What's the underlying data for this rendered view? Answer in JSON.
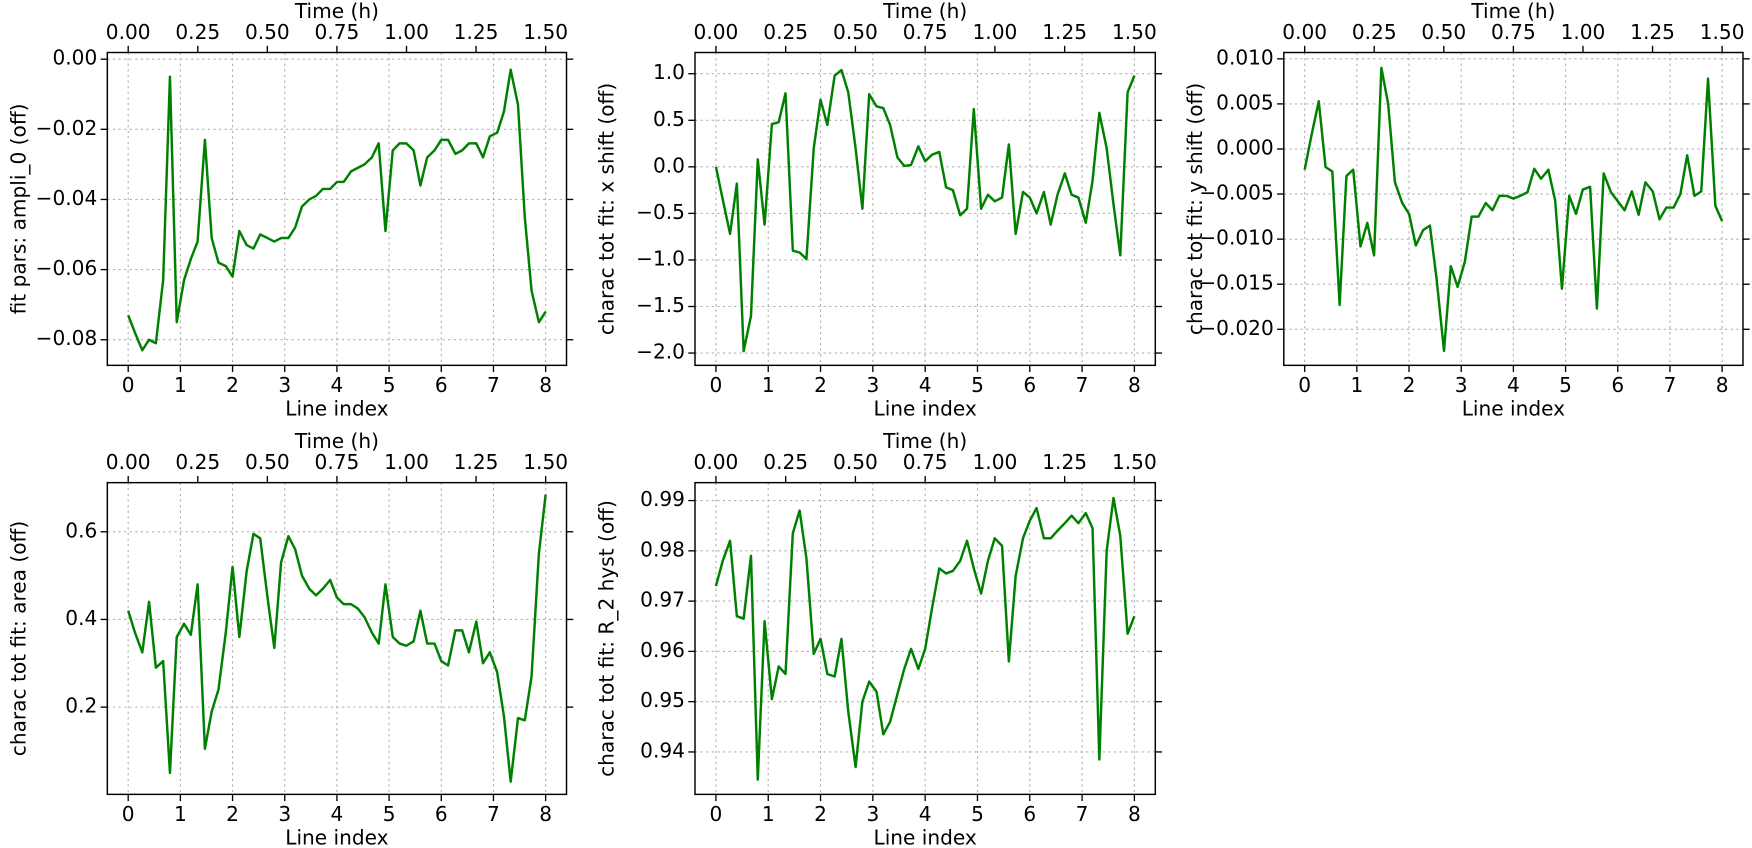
{
  "chart_data": [
    {
      "type": "line",
      "x2label": "Time (h)",
      "xlabel": "Line index",
      "ylabel": "fit pars: ampli_0 (off)",
      "color": "#008000",
      "grid": true,
      "x": [
        0,
        0.13,
        0.27,
        0.4,
        0.53,
        0.67,
        0.8,
        0.93,
        1.07,
        1.2,
        1.33,
        1.47,
        1.6,
        1.73,
        1.87,
        2,
        2.13,
        2.27,
        2.4,
        2.53,
        2.67,
        2.8,
        2.93,
        3.07,
        3.2,
        3.33,
        3.47,
        3.6,
        3.73,
        3.87,
        4,
        4.13,
        4.27,
        4.4,
        4.53,
        4.67,
        4.8,
        4.93,
        5.07,
        5.2,
        5.33,
        5.47,
        5.6,
        5.73,
        5.87,
        6,
        6.13,
        6.27,
        6.4,
        6.53,
        6.67,
        6.8,
        6.93,
        7.07,
        7.2,
        7.33,
        7.47,
        7.6,
        7.73,
        7.87,
        8
      ],
      "values": [
        -0.073,
        -0.078,
        -0.083,
        -0.08,
        -0.081,
        -0.063,
        -0.005,
        -0.075,
        -0.063,
        -0.057,
        -0.052,
        -0.023,
        -0.051,
        -0.058,
        -0.059,
        -0.062,
        -0.049,
        -0.053,
        -0.054,
        -0.05,
        -0.051,
        -0.052,
        -0.051,
        -0.051,
        -0.048,
        -0.042,
        -0.04,
        -0.039,
        -0.037,
        -0.037,
        -0.035,
        -0.035,
        -0.032,
        -0.031,
        -0.03,
        -0.028,
        -0.024,
        -0.049,
        -0.026,
        -0.024,
        -0.024,
        -0.026,
        -0.036,
        -0.028,
        -0.026,
        -0.023,
        -0.023,
        -0.027,
        -0.026,
        -0.024,
        -0.024,
        -0.028,
        -0.022,
        -0.021,
        -0.015,
        -0.003,
        -0.013,
        -0.045,
        -0.066,
        -0.075,
        -0.072
      ],
      "xlim": [
        -0.4,
        8.4
      ],
      "xticks": [
        0,
        1,
        2,
        3,
        4,
        5,
        6,
        7,
        8
      ],
      "x2lim": [
        -0.075,
        1.575
      ],
      "x2ticks": [
        {
          "value": 0,
          "label": "0.00"
        },
        {
          "value": 0.25,
          "label": "0.25"
        },
        {
          "value": 0.5,
          "label": "0.50"
        },
        {
          "value": 0.75,
          "label": "0.75"
        },
        {
          "value": 1,
          "label": "1.00"
        },
        {
          "value": 1.25,
          "label": "1.25"
        },
        {
          "value": 1.5,
          "label": "1.50"
        }
      ],
      "ylim": [
        -0.0873,
        0.0019
      ],
      "yticks": [
        {
          "value": -0.08,
          "label": "−0.08"
        },
        {
          "value": -0.06,
          "label": "−0.06"
        },
        {
          "value": -0.04,
          "label": "−0.04"
        },
        {
          "value": -0.02,
          "label": "−0.02"
        },
        {
          "value": 0,
          "label": "0.00"
        }
      ]
    },
    {
      "type": "line",
      "x2label": "Time (h)",
      "xlabel": "Line index",
      "ylabel": "charac tot fit: x shift (off)",
      "color": "#008000",
      "grid": true,
      "x": [
        0,
        0.13,
        0.27,
        0.4,
        0.53,
        0.67,
        0.8,
        0.93,
        1.07,
        1.2,
        1.33,
        1.47,
        1.6,
        1.73,
        1.87,
        2,
        2.13,
        2.27,
        2.4,
        2.53,
        2.67,
        2.8,
        2.93,
        3.07,
        3.2,
        3.33,
        3.47,
        3.6,
        3.73,
        3.87,
        4,
        4.13,
        4.27,
        4.4,
        4.53,
        4.67,
        4.8,
        4.93,
        5.07,
        5.2,
        5.33,
        5.47,
        5.6,
        5.73,
        5.87,
        6,
        6.13,
        6.27,
        6.4,
        6.53,
        6.67,
        6.8,
        6.93,
        7.07,
        7.2,
        7.33,
        7.47,
        7.6,
        7.73,
        7.87,
        8
      ],
      "values": [
        0.0,
        -0.35,
        -0.72,
        -0.18,
        -1.98,
        -1.6,
        0.08,
        -0.62,
        0.46,
        0.48,
        0.79,
        -0.9,
        -0.92,
        -0.99,
        0.2,
        0.72,
        0.45,
        0.98,
        1.04,
        0.8,
        0.2,
        -0.45,
        0.78,
        0.65,
        0.63,
        0.45,
        0.1,
        0.01,
        0.02,
        0.22,
        0.06,
        0.13,
        0.16,
        -0.22,
        -0.25,
        -0.52,
        -0.45,
        0.62,
        -0.45,
        -0.3,
        -0.37,
        -0.33,
        0.24,
        -0.72,
        -0.27,
        -0.33,
        -0.5,
        -0.27,
        -0.62,
        -0.3,
        -0.07,
        -0.3,
        -0.33,
        -0.6,
        -0.15,
        0.58,
        0.2,
        -0.4,
        -0.95,
        0.8,
        0.98
      ],
      "xlim": [
        -0.4,
        8.4
      ],
      "xticks": [
        0,
        1,
        2,
        3,
        4,
        5,
        6,
        7,
        8
      ],
      "x2lim": [
        -0.075,
        1.575
      ],
      "x2ticks": [
        {
          "value": 0,
          "label": "0.00"
        },
        {
          "value": 0.25,
          "label": "0.25"
        },
        {
          "value": 0.5,
          "label": "0.50"
        },
        {
          "value": 0.75,
          "label": "0.75"
        },
        {
          "value": 1,
          "label": "1.00"
        },
        {
          "value": 1.25,
          "label": "1.25"
        },
        {
          "value": 1.5,
          "label": "1.50"
        }
      ],
      "ylim": [
        -2.132,
        1.228
      ],
      "yticks": [
        {
          "value": -2,
          "label": "−2.0"
        },
        {
          "value": -1.5,
          "label": "−1.5"
        },
        {
          "value": -1,
          "label": "−1.0"
        },
        {
          "value": -0.5,
          "label": "−0.5"
        },
        {
          "value": 0,
          "label": "0.0"
        },
        {
          "value": 0.5,
          "label": "0.5"
        },
        {
          "value": 1,
          "label": "1.0"
        }
      ]
    },
    {
      "type": "line",
      "x2label": "Time (h)",
      "xlabel": "Line index",
      "ylabel": "charac tot fit: y shift (off)",
      "color": "#008000",
      "grid": true,
      "x": [
        0,
        0.13,
        0.27,
        0.4,
        0.53,
        0.67,
        0.8,
        0.93,
        1.07,
        1.2,
        1.33,
        1.47,
        1.6,
        1.73,
        1.87,
        2,
        2.13,
        2.27,
        2.4,
        2.53,
        2.67,
        2.8,
        2.93,
        3.07,
        3.2,
        3.33,
        3.47,
        3.6,
        3.73,
        3.87,
        4,
        4.13,
        4.27,
        4.4,
        4.53,
        4.67,
        4.8,
        4.93,
        5.07,
        5.2,
        5.33,
        5.47,
        5.6,
        5.73,
        5.87,
        6,
        6.13,
        6.27,
        6.4,
        6.53,
        6.67,
        6.8,
        6.93,
        7.07,
        7.2,
        7.33,
        7.47,
        7.6,
        7.73,
        7.87,
        8
      ],
      "values": [
        -0.0023,
        0.0015,
        0.0053,
        -0.002,
        -0.0025,
        -0.0173,
        -0.003,
        -0.0023,
        -0.0108,
        -0.0082,
        -0.0118,
        0.009,
        0.005,
        -0.0037,
        -0.006,
        -0.0072,
        -0.0107,
        -0.009,
        -0.0085,
        -0.0145,
        -0.0224,
        -0.013,
        -0.0153,
        -0.0125,
        -0.0075,
        -0.0075,
        -0.006,
        -0.0068,
        -0.0052,
        -0.0052,
        -0.0055,
        -0.0052,
        -0.0048,
        -0.0022,
        -0.0033,
        -0.0023,
        -0.0057,
        -0.0155,
        -0.0052,
        -0.0072,
        -0.0045,
        -0.0042,
        -0.0177,
        -0.0027,
        -0.0048,
        -0.0058,
        -0.0068,
        -0.0047,
        -0.0073,
        -0.0037,
        -0.0047,
        -0.0078,
        -0.0065,
        -0.0065,
        -0.005,
        -0.0007,
        -0.0052,
        -0.0047,
        0.0078,
        -0.0063,
        -0.008
      ],
      "xlim": [
        -0.4,
        8.4
      ],
      "xticks": [
        0,
        1,
        2,
        3,
        4,
        5,
        6,
        7,
        8
      ],
      "x2lim": [
        -0.075,
        1.575
      ],
      "x2ticks": [
        {
          "value": 0,
          "label": "0.00"
        },
        {
          "value": 0.25,
          "label": "0.25"
        },
        {
          "value": 0.5,
          "label": "0.50"
        },
        {
          "value": 0.75,
          "label": "0.75"
        },
        {
          "value": 1,
          "label": "1.00"
        },
        {
          "value": 1.25,
          "label": "1.25"
        },
        {
          "value": 1.5,
          "label": "1.50"
        }
      ],
      "ylim": [
        -0.024,
        0.0107
      ],
      "yticks": [
        {
          "value": -0.02,
          "label": "−0.020"
        },
        {
          "value": -0.015,
          "label": "−0.015"
        },
        {
          "value": -0.01,
          "label": "−0.010"
        },
        {
          "value": -0.005,
          "label": "−0.005"
        },
        {
          "value": 0,
          "label": "0.000"
        },
        {
          "value": 0.005,
          "label": "0.005"
        },
        {
          "value": 0.01,
          "label": "0.010"
        }
      ]
    },
    {
      "type": "line",
      "x2label": "Time (h)",
      "xlabel": "Line index",
      "ylabel": "charac tot fit: area (off)",
      "color": "#008000",
      "grid": true,
      "x": [
        0,
        0.13,
        0.27,
        0.4,
        0.53,
        0.67,
        0.8,
        0.93,
        1.07,
        1.2,
        1.33,
        1.47,
        1.6,
        1.73,
        1.87,
        2,
        2.13,
        2.27,
        2.4,
        2.53,
        2.67,
        2.8,
        2.93,
        3.07,
        3.2,
        3.33,
        3.47,
        3.6,
        3.73,
        3.87,
        4,
        4.13,
        4.27,
        4.4,
        4.53,
        4.67,
        4.8,
        4.93,
        5.07,
        5.2,
        5.33,
        5.47,
        5.6,
        5.73,
        5.87,
        6,
        6.13,
        6.27,
        6.4,
        6.53,
        6.67,
        6.8,
        6.93,
        7.07,
        7.2,
        7.33,
        7.47,
        7.6,
        7.73,
        7.87,
        8
      ],
      "values": [
        0.42,
        0.37,
        0.325,
        0.44,
        0.29,
        0.305,
        0.05,
        0.36,
        0.39,
        0.365,
        0.48,
        0.105,
        0.19,
        0.24,
        0.37,
        0.52,
        0.36,
        0.51,
        0.595,
        0.585,
        0.45,
        0.335,
        0.53,
        0.59,
        0.56,
        0.5,
        0.47,
        0.455,
        0.47,
        0.49,
        0.45,
        0.435,
        0.435,
        0.425,
        0.405,
        0.37,
        0.345,
        0.48,
        0.36,
        0.345,
        0.34,
        0.35,
        0.42,
        0.345,
        0.345,
        0.305,
        0.295,
        0.375,
        0.375,
        0.325,
        0.395,
        0.3,
        0.325,
        0.28,
        0.18,
        0.03,
        0.175,
        0.17,
        0.27,
        0.55,
        0.685
      ],
      "xlim": [
        -0.4,
        8.4
      ],
      "xticks": [
        0,
        1,
        2,
        3,
        4,
        5,
        6,
        7,
        8
      ],
      "x2lim": [
        -0.075,
        1.575
      ],
      "x2ticks": [
        {
          "value": 0,
          "label": "0.00"
        },
        {
          "value": 0.25,
          "label": "0.25"
        },
        {
          "value": 0.5,
          "label": "0.50"
        },
        {
          "value": 0.75,
          "label": "0.75"
        },
        {
          "value": 1,
          "label": "1.00"
        },
        {
          "value": 1.25,
          "label": "1.25"
        },
        {
          "value": 1.5,
          "label": "1.50"
        }
      ],
      "ylim": [
        0.001,
        0.712
      ],
      "yticks": [
        0.2,
        0.4,
        0.6
      ]
    },
    {
      "type": "line",
      "x2label": "Time (h)",
      "xlabel": "Line index",
      "ylabel": "charac tot fit: R_2 hyst (off)",
      "color": "#008000",
      "grid": true,
      "x": [
        0,
        0.13,
        0.27,
        0.4,
        0.53,
        0.67,
        0.8,
        0.93,
        1.07,
        1.2,
        1.33,
        1.47,
        1.6,
        1.73,
        1.87,
        2,
        2.13,
        2.27,
        2.4,
        2.53,
        2.67,
        2.8,
        2.93,
        3.07,
        3.2,
        3.33,
        3.47,
        3.6,
        3.73,
        3.87,
        4,
        4.13,
        4.27,
        4.4,
        4.53,
        4.67,
        4.8,
        4.93,
        5.07,
        5.2,
        5.33,
        5.47,
        5.6,
        5.73,
        5.87,
        6,
        6.13,
        6.27,
        6.4,
        6.53,
        6.67,
        6.8,
        6.93,
        7.07,
        7.2,
        7.33,
        7.47,
        7.6,
        7.73,
        7.87,
        8
      ],
      "values": [
        0.973,
        0.978,
        0.982,
        0.967,
        0.9665,
        0.979,
        0.9345,
        0.966,
        0.9505,
        0.957,
        0.9555,
        0.9835,
        0.988,
        0.9785,
        0.9595,
        0.9625,
        0.9555,
        0.955,
        0.9625,
        0.948,
        0.937,
        0.95,
        0.954,
        0.952,
        0.9435,
        0.946,
        0.9515,
        0.9565,
        0.9605,
        0.9565,
        0.9605,
        0.9685,
        0.9765,
        0.9755,
        0.976,
        0.978,
        0.982,
        0.9765,
        0.9715,
        0.978,
        0.9825,
        0.981,
        0.958,
        0.975,
        0.9825,
        0.986,
        0.9885,
        0.9825,
        0.9825,
        0.984,
        0.9855,
        0.987,
        0.9855,
        0.9875,
        0.9845,
        0.9385,
        0.98,
        0.9905,
        0.983,
        0.9635,
        0.967
      ],
      "xlim": [
        -0.4,
        8.4
      ],
      "xticks": [
        0,
        1,
        2,
        3,
        4,
        5,
        6,
        7,
        8
      ],
      "x2lim": [
        -0.075,
        1.575
      ],
      "x2ticks": [
        {
          "value": 0,
          "label": "0.00"
        },
        {
          "value": 0.25,
          "label": "0.25"
        },
        {
          "value": 0.5,
          "label": "0.50"
        },
        {
          "value": 0.75,
          "label": "0.75"
        },
        {
          "value": 1,
          "label": "1.00"
        },
        {
          "value": 1.25,
          "label": "1.25"
        },
        {
          "value": 1.5,
          "label": "1.50"
        }
      ],
      "ylim": [
        0.93156,
        0.99356
      ],
      "yticks": [
        0.94,
        0.95,
        0.96,
        0.97,
        0.98,
        0.99
      ]
    }
  ]
}
